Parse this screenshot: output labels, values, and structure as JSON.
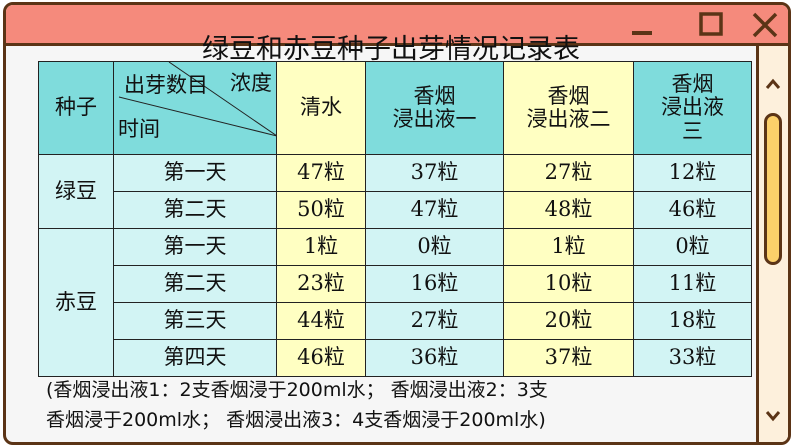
{
  "title": "绿豆和赤豆种子出芽情况记录表",
  "window_controls": {
    "minimize": "minimize-icon",
    "maximize": "maximize-icon",
    "close": "close-icon"
  },
  "colors": {
    "titlebar": "#f58a7c",
    "border": "#5b3416",
    "header": "#7fdcdc",
    "yellow": "#ffffc2",
    "light_cyan": "#d2f4f4",
    "thumb": "#fcd06a"
  },
  "header": {
    "seed": "种子",
    "diag_top": "浓度",
    "diag_mid": "出芽数目",
    "diag_bottom": "时间",
    "cols": [
      "清水",
      "香烟\n浸出液一",
      "香烟\n浸出液二",
      "香烟\n浸出液\n三"
    ]
  },
  "groups": [
    {
      "name": "绿豆",
      "rows": [
        {
          "day": "第一天",
          "vals": [
            "47粒",
            "37粒",
            "27粒",
            "12粒"
          ]
        },
        {
          "day": "第二天",
          "vals": [
            "50粒",
            "47粒",
            "48粒",
            "46粒"
          ]
        }
      ]
    },
    {
      "name": "赤豆",
      "rows": [
        {
          "day": "第一天",
          "vals": [
            "1粒",
            "0粒",
            "1粒",
            "0粒"
          ]
        },
        {
          "day": "第二天",
          "vals": [
            "23粒",
            "16粒",
            "10粒",
            "11粒"
          ]
        },
        {
          "day": "第三天",
          "vals": [
            "44粒",
            "27粒",
            "20粒",
            "18粒"
          ]
        },
        {
          "day": "第四天",
          "vals": [
            "46粒",
            "36粒",
            "37粒",
            "33粒"
          ]
        }
      ]
    }
  ],
  "note": {
    "line1": "(香烟浸出液1：2支香烟浸于200ml水；  香烟浸出液2：3支",
    "line2": "香烟浸于200ml水；  香烟浸出液3：4支香烟浸于200ml水)"
  }
}
